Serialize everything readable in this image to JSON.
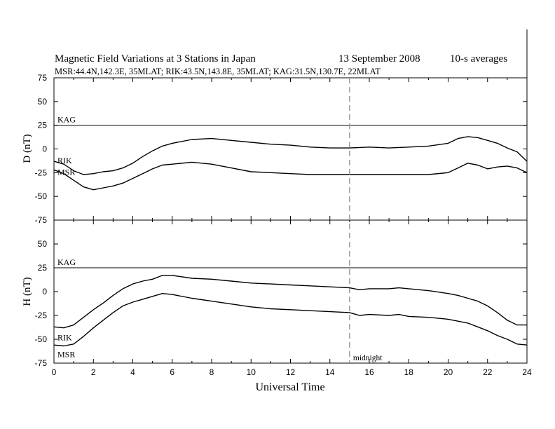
{
  "header": {
    "title": "Magnetic Field Variations at 3 Stations in Japan",
    "date": "13 September 2008",
    "averaging": "10-s averages",
    "stations": "MSR:44.4N,142.3E, 35MLAT;  RIK:43.5N,143.8E, 35MLAT;  KAG:31.5N,130.7E, 22MLAT"
  },
  "chart_data": [
    {
      "type": "line",
      "ylabel": "D (nT)",
      "ylim": [
        -75,
        75
      ],
      "yticks": [
        75,
        50,
        25,
        0,
        -25,
        -50,
        -75
      ],
      "xlim": [
        0,
        24
      ],
      "series": [
        {
          "name": "KAG",
          "x": [
            0,
            24
          ],
          "y": [
            25,
            25
          ]
        },
        {
          "name": "RIK",
          "x": [
            0,
            0.5,
            1,
            1.5,
            2,
            2.5,
            3,
            3.5,
            4,
            4.5,
            5,
            5.5,
            6,
            7,
            8,
            9,
            10,
            11,
            12,
            13,
            14,
            15,
            16,
            17,
            18,
            19,
            20,
            20.5,
            21,
            21.5,
            22,
            22.5,
            23,
            23.5,
            24
          ],
          "y": [
            -13,
            -16,
            -23,
            -27,
            -26,
            -24,
            -23,
            -20,
            -15,
            -8,
            -2,
            3,
            6,
            10,
            11,
            9,
            7,
            5,
            4,
            2,
            1,
            1,
            2,
            1,
            2,
            3,
            6,
            11,
            13,
            12,
            9,
            6,
            1,
            -3,
            -13
          ]
        },
        {
          "name": "MSR",
          "x": [
            0,
            0.5,
            1,
            1.5,
            2,
            2.5,
            3,
            3.5,
            4,
            4.5,
            5,
            5.5,
            6,
            7,
            8,
            9,
            10,
            11,
            12,
            13,
            14,
            15,
            16,
            17,
            18,
            19,
            20,
            20.5,
            21,
            21.5,
            22,
            22.5,
            23,
            23.5,
            24
          ],
          "y": [
            -22,
            -26,
            -33,
            -40,
            -43,
            -41,
            -39,
            -36,
            -31,
            -26,
            -21,
            -17,
            -16,
            -14,
            -16,
            -20,
            -24,
            -25,
            -26,
            -27,
            -27,
            -27,
            -27,
            -27,
            -27,
            -27,
            -25,
            -20,
            -15,
            -17,
            -21,
            -19,
            -18,
            -20,
            -25
          ]
        }
      ]
    },
    {
      "type": "line",
      "ylabel": "H (nT)",
      "ylim": [
        -75,
        75
      ],
      "yticks": [
        75,
        50,
        25,
        0,
        -25,
        -50,
        -75
      ],
      "xlim": [
        0,
        24
      ],
      "xlabel": "Universal Time",
      "xticks": [
        0,
        2,
        4,
        6,
        8,
        10,
        12,
        14,
        16,
        18,
        20,
        22,
        24
      ],
      "annotations": [
        {
          "x": 15,
          "text": "midnight",
          "style": "dashed vertical line"
        }
      ],
      "series": [
        {
          "name": "KAG",
          "x": [
            0,
            24
          ],
          "y": [
            25,
            25
          ]
        },
        {
          "name": "RIK",
          "x": [
            0,
            0.5,
            1,
            1.5,
            2,
            2.5,
            3,
            3.5,
            4,
            4.5,
            5,
            5.5,
            6,
            7,
            8,
            9,
            10,
            11,
            12,
            13,
            14,
            15,
            15.5,
            16,
            17,
            17.5,
            18,
            19,
            20,
            20.5,
            21,
            21.5,
            22,
            22.5,
            23,
            23.5,
            24
          ],
          "y": [
            -37,
            -38,
            -35,
            -27,
            -19,
            -12,
            -4,
            3,
            8,
            11,
            13,
            17,
            17,
            14,
            13,
            11,
            9,
            8,
            7,
            6,
            5,
            4,
            2,
            3,
            3,
            4,
            3,
            1,
            -2,
            -4,
            -7,
            -10,
            -15,
            -22,
            -30,
            -35,
            -35
          ]
        },
        {
          "name": "MSR",
          "x": [
            0,
            0.5,
            1,
            1.5,
            2,
            2.5,
            3,
            3.5,
            4,
            4.5,
            5,
            5.5,
            6,
            7,
            8,
            9,
            10,
            11,
            12,
            13,
            14,
            15,
            15.5,
            16,
            17,
            17.5,
            18,
            19,
            20,
            20.5,
            21,
            21.5,
            22,
            22.5,
            23,
            23.5,
            24
          ],
          "y": [
            -56,
            -57,
            -55,
            -47,
            -38,
            -30,
            -22,
            -15,
            -11,
            -8,
            -5,
            -2,
            -3,
            -7,
            -10,
            -13,
            -16,
            -18,
            -19,
            -20,
            -21,
            -22,
            -25,
            -24,
            -25,
            -24,
            -26,
            -27,
            -29,
            -31,
            -33,
            -37,
            -41,
            -46,
            -50,
            -55,
            -56
          ]
        }
      ]
    }
  ]
}
